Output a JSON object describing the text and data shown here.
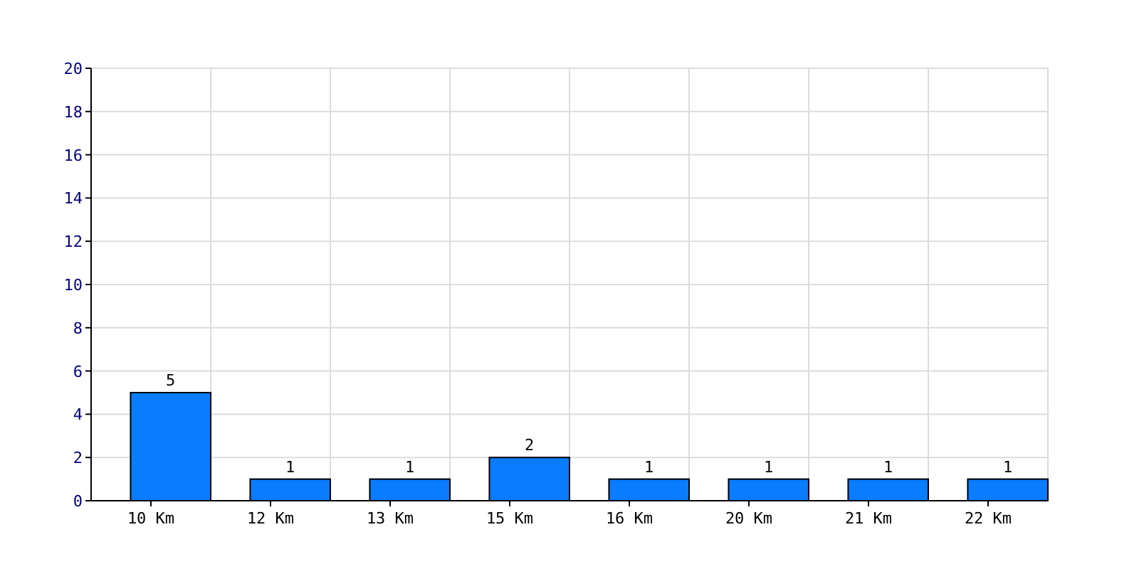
{
  "chart_data": {
    "type": "bar",
    "categories": [
      "10 Km",
      "12 Km",
      "13 Km",
      "15 Km",
      "16 Km",
      "20 Km",
      "21 Km",
      "22 Km"
    ],
    "values": [
      5,
      1,
      1,
      2,
      1,
      1,
      1,
      1
    ],
    "color": "#0a7cff",
    "ylim": [
      0,
      20
    ],
    "yticks": [
      0,
      2,
      4,
      6,
      8,
      10,
      12,
      14,
      16,
      18,
      20
    ],
    "grid": true,
    "data_labels": true
  }
}
